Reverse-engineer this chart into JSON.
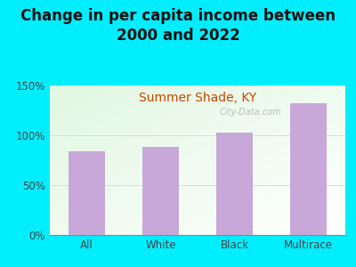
{
  "title": "Change in per capita income between\n2000 and 2022",
  "subtitle": "Summer Shade, KY",
  "categories": [
    "All",
    "White",
    "Black",
    "Multirace"
  ],
  "values": [
    84,
    88,
    103,
    132
  ],
  "bar_color": "#c8a8d8",
  "title_fontsize": 12,
  "subtitle_fontsize": 10,
  "subtitle_color": "#cc4400",
  "background_outer": "#00eeff",
  "ylim": [
    0,
    150
  ],
  "yticks": [
    0,
    50,
    100,
    150
  ],
  "watermark": "City-Data.com"
}
